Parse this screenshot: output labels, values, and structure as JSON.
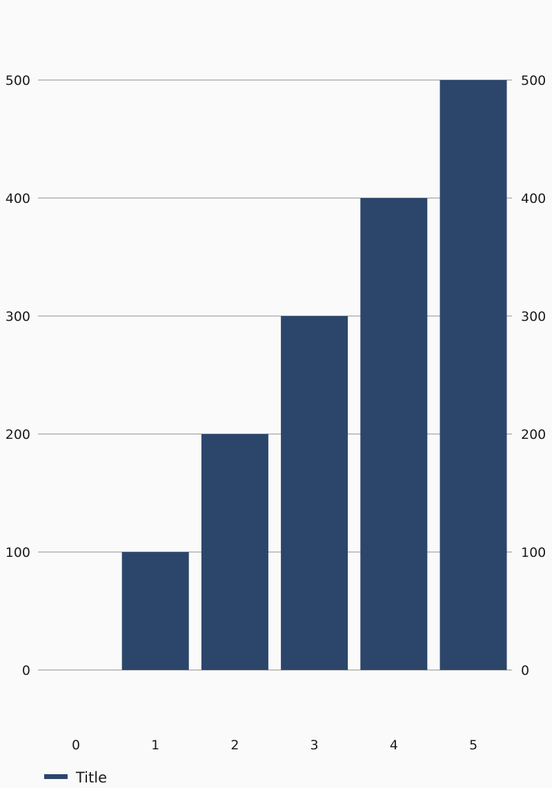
{
  "chart_data": {
    "type": "bar",
    "categories": [
      "0",
      "1",
      "2",
      "3",
      "4",
      "5"
    ],
    "series": [
      {
        "name": "Title",
        "values": [
          0,
          100,
          200,
          300,
          400,
          500
        ],
        "color": "#2c466b"
      }
    ],
    "yticks": [
      0,
      100,
      200,
      300,
      400,
      500
    ],
    "ylim": [
      0,
      500
    ],
    "grid": true,
    "legend_position": "bottom-left",
    "dual_y_axis": true
  }
}
